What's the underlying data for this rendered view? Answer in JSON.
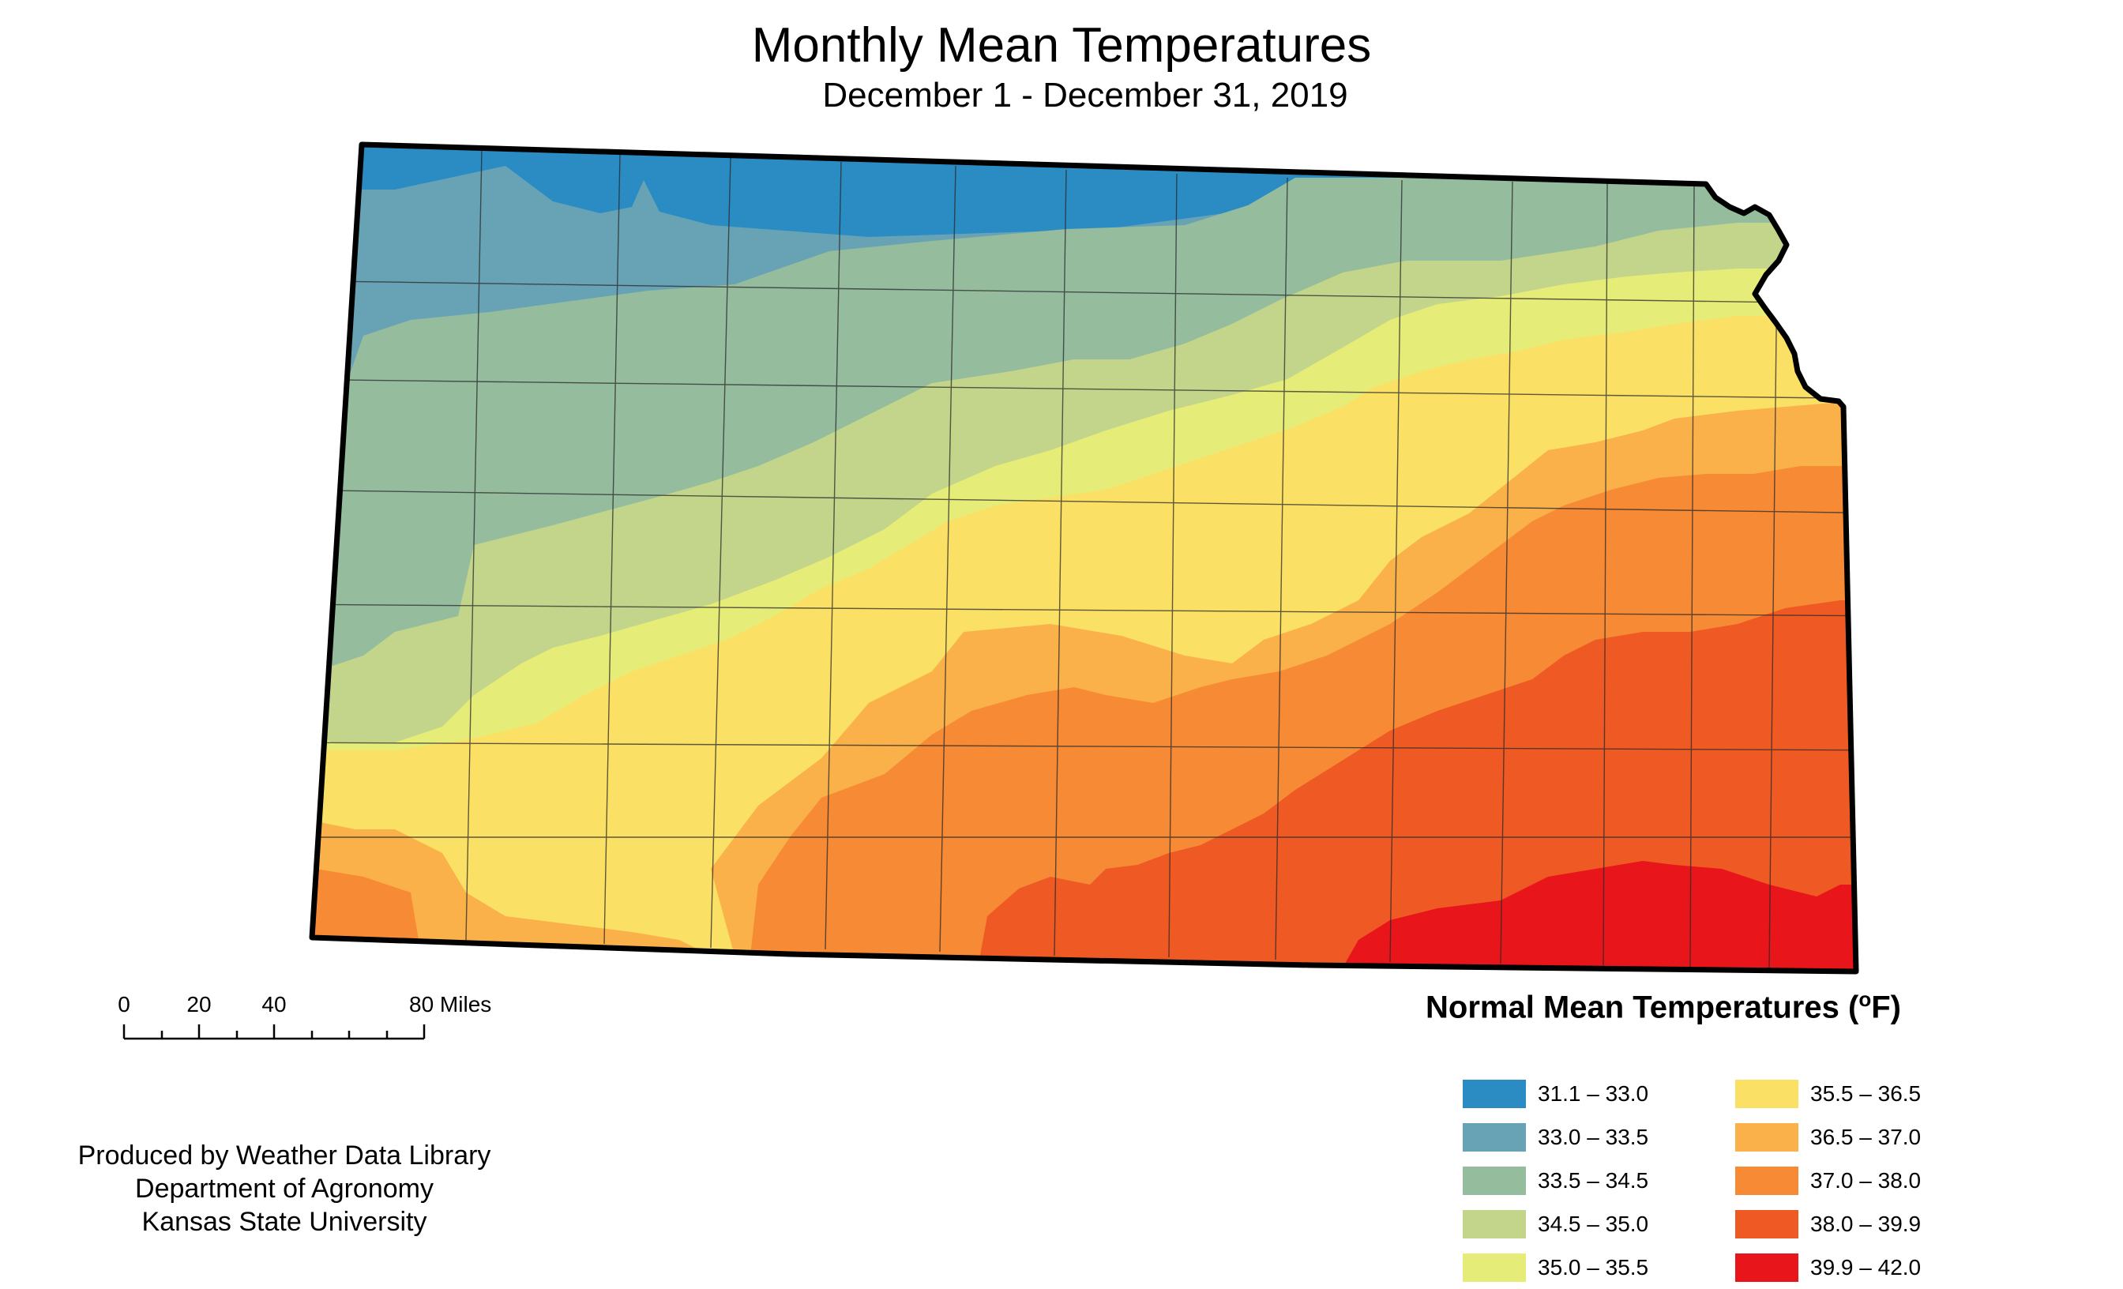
{
  "title": "Monthly Mean Temperatures",
  "subtitle": "December 1 - December 31, 2019",
  "legend": {
    "title": "Normal Mean Temperatures (",
    "unit_sup": "o",
    "unit_tail": "F)",
    "items": [
      {
        "label": "31.1 – 33.0",
        "color": "#2b8cc4"
      },
      {
        "label": "33.0 – 33.5",
        "color": "#67a3b4"
      },
      {
        "label": "33.5 – 34.5",
        "color": "#94bc9d"
      },
      {
        "label": "34.5 – 35.0",
        "color": "#c2d58a"
      },
      {
        "label": "35.0 – 35.5",
        "color": "#e6ec78"
      },
      {
        "label": "35.5 – 36.5",
        "color": "#fbe066"
      },
      {
        "label": "36.5 – 37.0",
        "color": "#fbb14a"
      },
      {
        "label": "37.0 – 38.0",
        "color": "#f78a35"
      },
      {
        "label": "38.0 – 39.9",
        "color": "#ef5a24"
      },
      {
        "label": "39.9 – 42.0",
        "color": "#e8161b"
      }
    ]
  },
  "scale_bar": {
    "ticks": [
      "0",
      "20",
      "40",
      "80 Miles"
    ]
  },
  "credits": {
    "line1": "Produced by Weather Data Library",
    "line2": "Department of Agronomy",
    "line3": "Kansas State University"
  }
}
